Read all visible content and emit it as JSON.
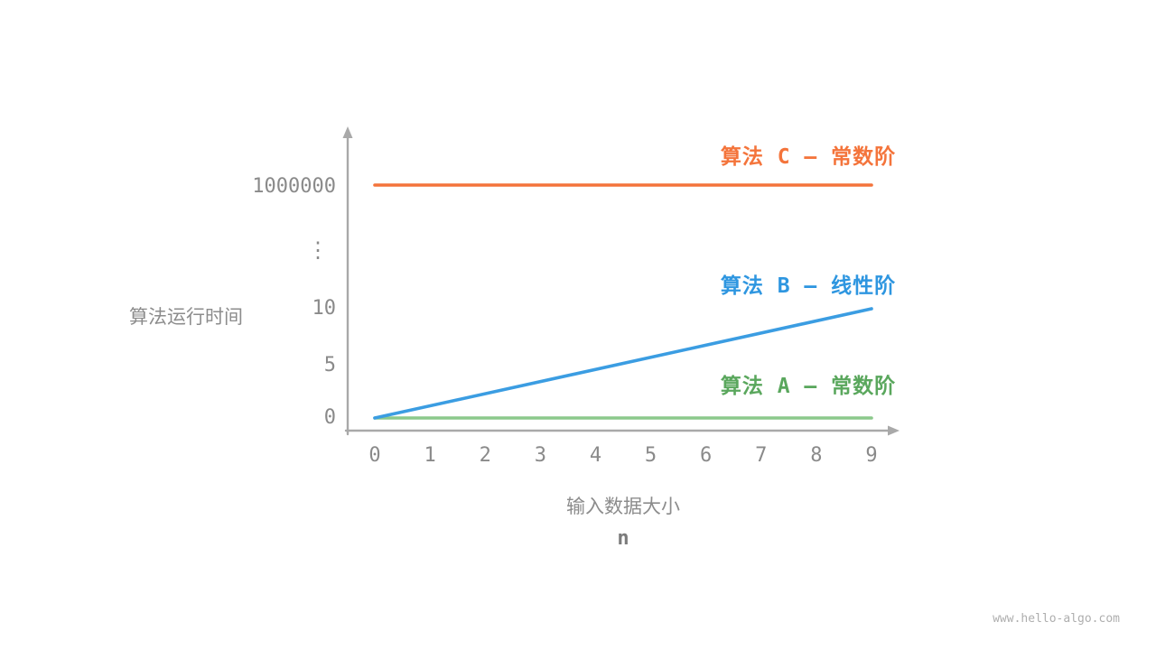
{
  "page": {
    "watermark": "www.hello-algo.com"
  },
  "chart_data": {
    "type": "line",
    "title": "",
    "ylabel": "算法运行时间",
    "xlabel": "输入数据大小",
    "xlabel_symbol": "n",
    "x_range": [
      0,
      9
    ],
    "x_ticks": [
      "0",
      "1",
      "2",
      "3",
      "4",
      "5",
      "6",
      "7",
      "8",
      "9"
    ],
    "y_ticks": [
      {
        "label": "1000000",
        "value": 1000000
      },
      {
        "label": "⋮",
        "value": null
      },
      {
        "label": "10",
        "value": 10
      },
      {
        "label": "5",
        "value": 5
      },
      {
        "label": "0",
        "value": 0
      }
    ],
    "y_axis_broken": "⋮",
    "legend_position": "right-of-lines",
    "grid": false,
    "series": [
      {
        "name": "算法 C — 常数阶",
        "complexity": "常数阶",
        "line_color": "#f4743b",
        "label_color": "#f4743b",
        "x": [
          0,
          9
        ],
        "y": [
          1000000,
          1000000
        ]
      },
      {
        "name": "算法 B — 线性阶",
        "complexity": "线性阶",
        "line_color": "#3b9de2",
        "label_color": "#2e96e0",
        "x": [
          0,
          9
        ],
        "y": [
          0,
          10
        ]
      },
      {
        "name": "算法 A — 常数阶",
        "complexity": "常数阶",
        "line_color": "#8cc98c",
        "label_color": "#5aa75d",
        "x": [
          0,
          9
        ],
        "y": [
          0,
          0
        ]
      }
    ]
  }
}
